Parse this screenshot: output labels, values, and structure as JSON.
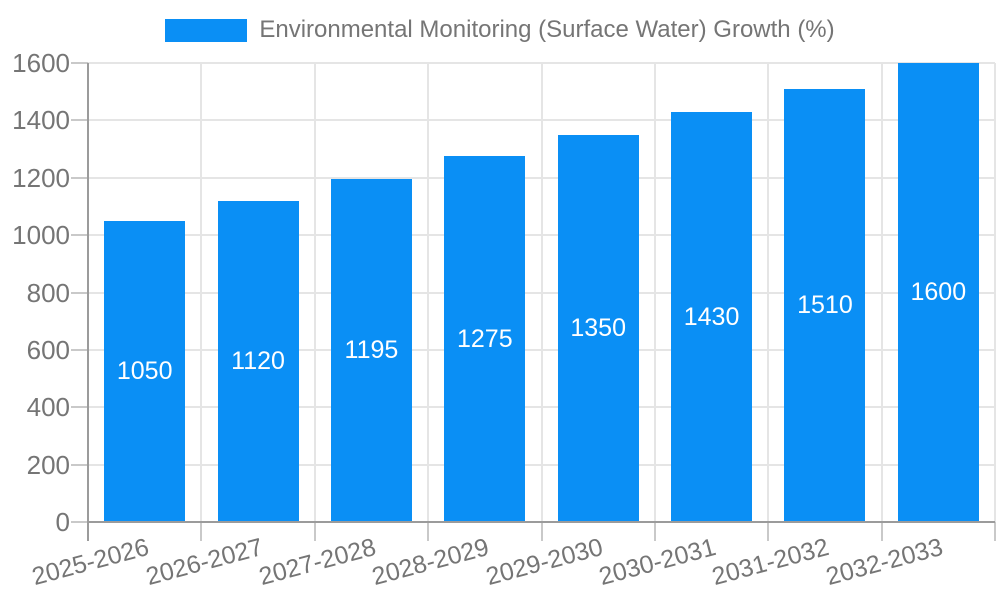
{
  "chart_data": {
    "type": "bar",
    "title": "Environmental Monitoring (Surface Water) Growth (%)",
    "legend": [
      "Environmental Monitoring (Surface Water) Growth (%)"
    ],
    "legend_position": "top-center",
    "categories": [
      "2025-2026",
      "2026-2027",
      "2027-2028",
      "2028-2029",
      "2029-2030",
      "2030-2031",
      "2031-2032",
      "2032-2033"
    ],
    "values": [
      1050,
      1120,
      1195,
      1275,
      1350,
      1430,
      1510,
      1600
    ],
    "value_labels_inside_bars": true,
    "xlabel": "",
    "ylabel": "",
    "ylim": [
      0,
      1600
    ],
    "y_ticks": [
      0,
      200,
      400,
      600,
      800,
      1000,
      1200,
      1400,
      1600
    ],
    "x_label_rotation_deg": -15,
    "grid": true
  },
  "colors": {
    "bar": "#0a8ff5",
    "value_label": "#ffffff",
    "axis_text": "#757575",
    "legend_text": "#757575",
    "axis_line": "#9b9b9b",
    "grid_line": "#e5e5e5",
    "tick_line": "#c9c9c9",
    "background": "#ffffff"
  }
}
